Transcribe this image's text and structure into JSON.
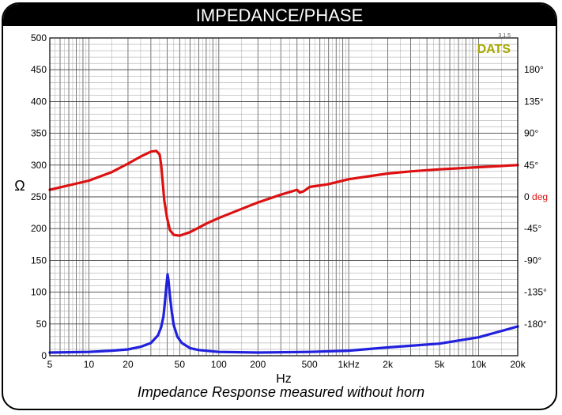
{
  "header": {
    "title": "IMPEDANCE/PHASE"
  },
  "caption": "Impedance Response measured without horn",
  "chart_data": {
    "type": "line",
    "title": "IMPEDANCE/PHASE",
    "xlabel": "Hz",
    "ylabel": "Ω",
    "x_scale": "log",
    "xlim": [
      5,
      20000
    ],
    "ylim": [
      0,
      500
    ],
    "y2lim": [
      -225,
      225
    ],
    "grid": true,
    "brand": {
      "name": "DATS",
      "version": "3.1.5",
      "color": "#a8a800"
    },
    "x_ticks": [
      {
        "value": 5,
        "label": "5"
      },
      {
        "value": 10,
        "label": "10"
      },
      {
        "value": 20,
        "label": "20"
      },
      {
        "value": 50,
        "label": "50"
      },
      {
        "value": 100,
        "label": "100"
      },
      {
        "value": 200,
        "label": "200"
      },
      {
        "value": 500,
        "label": "500"
      },
      {
        "value": 1000,
        "label": "1kHz"
      },
      {
        "value": 2000,
        "label": "2k"
      },
      {
        "value": 5000,
        "label": "5k"
      },
      {
        "value": 10000,
        "label": "10k"
      },
      {
        "value": 20000,
        "label": "20k"
      }
    ],
    "y_ticks": [
      {
        "value": 0,
        "label": "0"
      },
      {
        "value": 50,
        "label": "50"
      },
      {
        "value": 100,
        "label": "100"
      },
      {
        "value": 150,
        "label": "150"
      },
      {
        "value": 200,
        "label": "200"
      },
      {
        "value": 250,
        "label": "250"
      },
      {
        "value": 300,
        "label": "300"
      },
      {
        "value": 350,
        "label": "350"
      },
      {
        "value": 400,
        "label": "400"
      },
      {
        "value": 450,
        "label": "450"
      },
      {
        "value": 500,
        "label": "500"
      }
    ],
    "y2_ticks": [
      {
        "value": 180,
        "label": "180°"
      },
      {
        "value": 135,
        "label": "135°"
      },
      {
        "value": 90,
        "label": "90°"
      },
      {
        "value": 45,
        "label": "45°"
      },
      {
        "value": 0,
        "label": "0",
        "suffix": " deg"
      },
      {
        "value": -45,
        "label": "-45°"
      },
      {
        "value": -90,
        "label": "-90°"
      },
      {
        "value": -135,
        "label": "-135°"
      },
      {
        "value": -180,
        "label": "-180°"
      }
    ],
    "series": [
      {
        "axis": "impedance",
        "color": "#2020dd",
        "points": [
          [
            5,
            5
          ],
          [
            10,
            6
          ],
          [
            15,
            8
          ],
          [
            20,
            10
          ],
          [
            25,
            14
          ],
          [
            30,
            20
          ],
          [
            34,
            32
          ],
          [
            36,
            45
          ],
          [
            37.5,
            62
          ],
          [
            38.5,
            85
          ],
          [
            39.5,
            110
          ],
          [
            40.3,
            128
          ],
          [
            41,
            118
          ],
          [
            42,
            95
          ],
          [
            43.5,
            68
          ],
          [
            45,
            48
          ],
          [
            48,
            30
          ],
          [
            52,
            20
          ],
          [
            60,
            12
          ],
          [
            70,
            9
          ],
          [
            100,
            6
          ],
          [
            200,
            5
          ],
          [
            500,
            6
          ],
          [
            1000,
            8
          ],
          [
            2000,
            13
          ],
          [
            5000,
            19
          ],
          [
            10000,
            29
          ],
          [
            20000,
            46
          ]
        ]
      },
      {
        "axis": "phase",
        "color": "#dd1111",
        "points": [
          [
            5,
            10
          ],
          [
            10,
            23
          ],
          [
            15,
            35
          ],
          [
            20,
            47
          ],
          [
            25,
            57
          ],
          [
            30,
            64
          ],
          [
            33,
            65
          ],
          [
            35,
            60
          ],
          [
            36,
            45
          ],
          [
            37,
            20
          ],
          [
            38,
            -5
          ],
          [
            40,
            -30
          ],
          [
            42,
            -47
          ],
          [
            45,
            -54
          ],
          [
            50,
            -55
          ],
          [
            60,
            -50
          ],
          [
            80,
            -38
          ],
          [
            100,
            -30
          ],
          [
            150,
            -17
          ],
          [
            200,
            -8
          ],
          [
            300,
            3
          ],
          [
            400,
            10
          ],
          [
            420,
            6
          ],
          [
            450,
            8
          ],
          [
            500,
            14
          ],
          [
            700,
            18
          ],
          [
            1000,
            25
          ],
          [
            2000,
            33
          ],
          [
            3000,
            36
          ],
          [
            5000,
            39
          ],
          [
            10000,
            42
          ],
          [
            20000,
            45
          ]
        ]
      }
    ]
  }
}
